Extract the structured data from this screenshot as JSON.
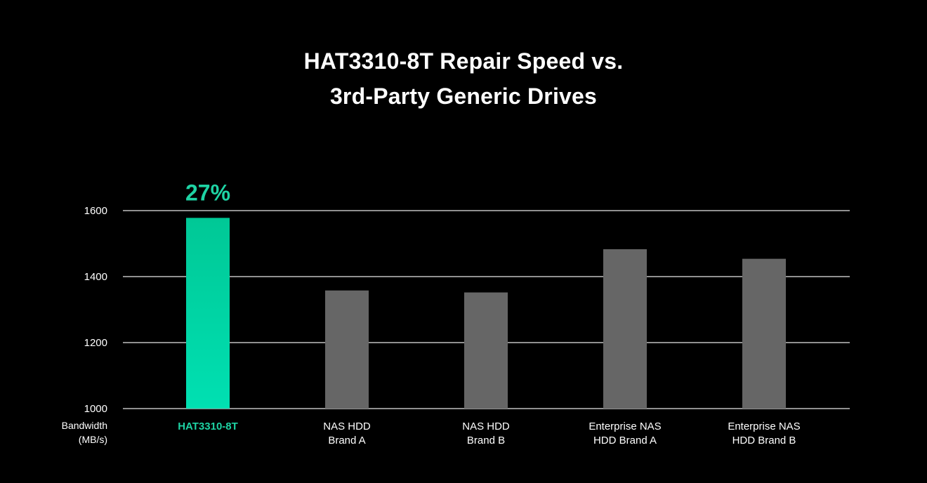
{
  "chart_data": {
    "type": "bar",
    "title_lines": [
      "HAT3310-8T Repair Speed vs.",
      "3rd-Party Generic Drives"
    ],
    "ylabel_lines": [
      "Bandwidth",
      "(MB/s)"
    ],
    "xlabel": "",
    "ylim": [
      1000,
      1600
    ],
    "yticks": [
      1000,
      1200,
      1400,
      1600
    ],
    "grid": true,
    "categories": [
      [
        "HAT3310-8T"
      ],
      [
        "NAS HDD",
        "Brand A"
      ],
      [
        "NAS HDD",
        "Brand B"
      ],
      [
        "Enterprise NAS",
        "HDD Brand A"
      ],
      [
        "Enterprise NAS",
        "HDD Brand B"
      ]
    ],
    "values": [
      1578,
      1358,
      1352,
      1483,
      1454
    ],
    "highlight_index": 0,
    "annotation": "27%",
    "colors": {
      "highlight_top": "#00C896",
      "highlight_bottom": "#00E0B2",
      "highlight_label": "#1ED3A4",
      "bar": "#666666",
      "grid": "#E6E6E6",
      "text": "#FFFFFF",
      "background": "#000000"
    }
  }
}
